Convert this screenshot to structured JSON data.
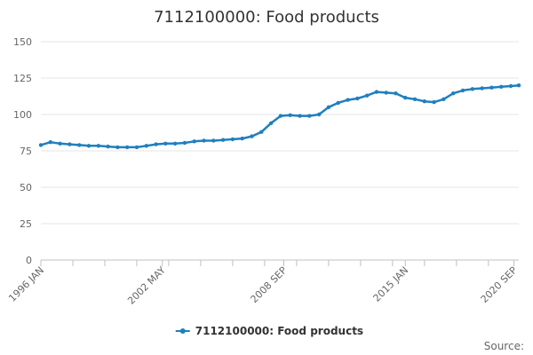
{
  "chart_data": {
    "type": "line",
    "title": "7112100000: Food products",
    "source_label": "Source:",
    "ylim": [
      0,
      150
    ],
    "y_ticks": [
      0,
      25,
      50,
      75,
      100,
      125,
      150
    ],
    "x_range": [
      "1996-01",
      "2020-12"
    ],
    "x_ticks": [
      {
        "date": "1996-01",
        "label": "1996 JAN"
      },
      {
        "date": "2002-05",
        "label": "2002 MAY"
      },
      {
        "date": "2008-09",
        "label": "2008 SEP"
      },
      {
        "date": "2015-01",
        "label": "2015 JAN"
      },
      {
        "date": "2020-09",
        "label": "2020 SEP"
      }
    ],
    "grid": true,
    "legend_position": "bottom",
    "series": [
      {
        "name": "7112100000: Food products",
        "color": "#1f7fbf",
        "points": [
          [
            "1996-01",
            79
          ],
          [
            "1996-07",
            81
          ],
          [
            "1997-01",
            80
          ],
          [
            "1997-07",
            79.5
          ],
          [
            "1998-01",
            79
          ],
          [
            "1998-07",
            78.5
          ],
          [
            "1999-01",
            78.5
          ],
          [
            "1999-07",
            78
          ],
          [
            "2000-01",
            77.5
          ],
          [
            "2000-07",
            77.5
          ],
          [
            "2001-01",
            77.5
          ],
          [
            "2001-07",
            78.5
          ],
          [
            "2002-01",
            79.5
          ],
          [
            "2002-07",
            80
          ],
          [
            "2003-01",
            80
          ],
          [
            "2003-07",
            80.5
          ],
          [
            "2004-01",
            81.5
          ],
          [
            "2004-07",
            82
          ],
          [
            "2005-01",
            82
          ],
          [
            "2005-07",
            82.5
          ],
          [
            "2006-01",
            83
          ],
          [
            "2006-07",
            83.5
          ],
          [
            "2007-01",
            85
          ],
          [
            "2007-07",
            88
          ],
          [
            "2008-01",
            94
          ],
          [
            "2008-07",
            99
          ],
          [
            "2009-01",
            99.5
          ],
          [
            "2009-07",
            99
          ],
          [
            "2010-01",
            99
          ],
          [
            "2010-07",
            100
          ],
          [
            "2011-01",
            105
          ],
          [
            "2011-07",
            108
          ],
          [
            "2012-01",
            110
          ],
          [
            "2012-07",
            111
          ],
          [
            "2013-01",
            113
          ],
          [
            "2013-07",
            115.5
          ],
          [
            "2014-01",
            115
          ],
          [
            "2014-07",
            114.5
          ],
          [
            "2015-01",
            111.5
          ],
          [
            "2015-07",
            110.5
          ],
          [
            "2016-01",
            109
          ],
          [
            "2016-07",
            108.5
          ],
          [
            "2017-01",
            110.5
          ],
          [
            "2017-07",
            114.5
          ],
          [
            "2018-01",
            116.5
          ],
          [
            "2018-07",
            117.5
          ],
          [
            "2019-01",
            118
          ],
          [
            "2019-07",
            118.5
          ],
          [
            "2020-01",
            119
          ],
          [
            "2020-07",
            119.5
          ],
          [
            "2020-12",
            120
          ]
        ]
      }
    ]
  }
}
